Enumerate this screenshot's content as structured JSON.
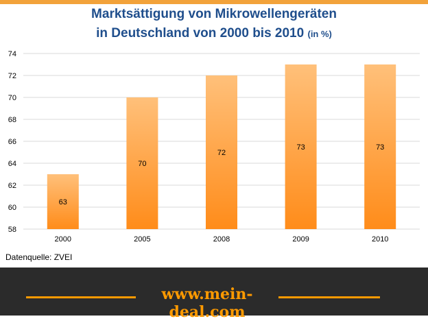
{
  "title": {
    "line1": "Marktsättigung  von Mikrowellengeräten",
    "line2": "in Deutschland  von 2000 bis 2010",
    "unit": "(in %)"
  },
  "source": "Datenquelle: ZVEI",
  "footer": {
    "url": "www.mein-deal.com"
  },
  "colors": {
    "title": "#1f4e8c",
    "bar_top": "#ffc07a",
    "bar_bottom": "#ff8c1a",
    "footer_bg": "#2b2b2b",
    "footer_accent": "#ff9a00"
  },
  "chart_data": {
    "type": "bar",
    "categories": [
      "2000",
      "2005",
      "2008",
      "2009",
      "2010"
    ],
    "values": [
      63,
      70,
      72,
      73,
      73
    ],
    "data_labels": [
      "63",
      "70",
      "72",
      "73",
      "73"
    ],
    "ylim": [
      58,
      74
    ],
    "yticks": [
      58,
      60,
      62,
      64,
      66,
      68,
      70,
      72,
      74
    ],
    "grid": true,
    "legend": "none"
  }
}
